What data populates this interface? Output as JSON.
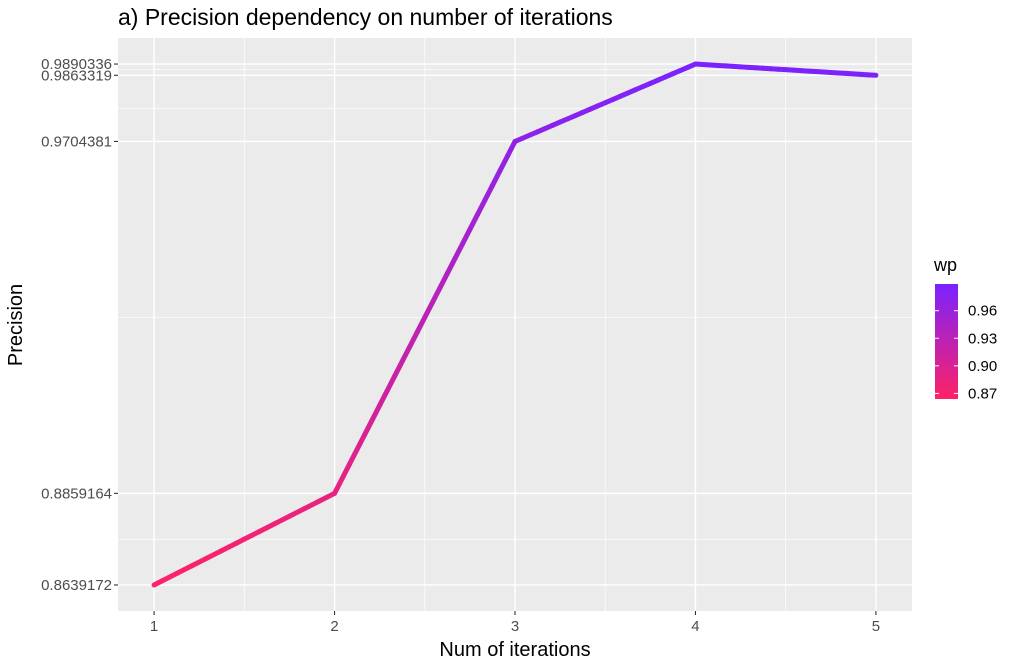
{
  "chart_data": {
    "type": "line",
    "title": "a) Precision dependency on number of iterations",
    "xlabel": "Num of iterations",
    "ylabel": "Precision",
    "x": [
      1,
      2,
      3,
      4,
      5
    ],
    "y": [
      0.8639172,
      0.8859164,
      0.9704381,
      0.9890336,
      0.9863319
    ],
    "x_ticks": [
      "1",
      "2",
      "3",
      "4",
      "5"
    ],
    "y_ticks": [
      "0.8639172",
      "0.8859164",
      "0.9704381",
      "0.9863319",
      "0.9890336"
    ],
    "xlim": [
      0.8,
      5.2
    ],
    "ylim": [
      0.8576627,
      0.9952881
    ],
    "grid": true,
    "legend": {
      "title": "wp",
      "position": "right",
      "type": "colorbar",
      "labels": [
        "0.96",
        "0.93",
        "0.90",
        "0.87"
      ],
      "label_values": [
        0.96,
        0.93,
        0.9,
        0.87
      ],
      "range": [
        0.8639172,
        0.9890336
      ],
      "colors": {
        "low": "#FF2266",
        "high": "#7B22FF"
      }
    },
    "colors": {
      "panel_background": "#EBEBEB",
      "grid": "#FFFFFF"
    }
  }
}
